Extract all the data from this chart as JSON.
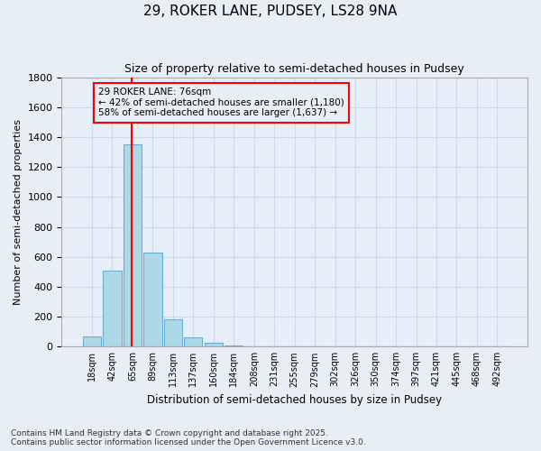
{
  "title": "29, ROKER LANE, PUDSEY, LS28 9NA",
  "subtitle": "Size of property relative to semi-detached houses in Pudsey",
  "xlabel": "Distribution of semi-detached houses by size in Pudsey",
  "ylabel": "Number of semi-detached properties",
  "footnote": "Contains HM Land Registry data © Crown copyright and database right 2025.\nContains public sector information licensed under the Open Government Licence v3.0.",
  "bin_labels": [
    "18sqm",
    "42sqm",
    "65sqm",
    "89sqm",
    "113sqm",
    "137sqm",
    "160sqm",
    "184sqm",
    "208sqm",
    "231sqm",
    "255sqm",
    "279sqm",
    "302sqm",
    "326sqm",
    "350sqm",
    "374sqm",
    "397sqm",
    "421sqm",
    "445sqm",
    "468sqm",
    "492sqm"
  ],
  "bar_values": [
    70,
    510,
    1350,
    630,
    185,
    60,
    25,
    10,
    0,
    0,
    0,
    0,
    0,
    0,
    0,
    0,
    0,
    0,
    0,
    0,
    0
  ],
  "bar_color": "#add8e6",
  "bar_edge_color": "#6baed6",
  "grid_color": "#d0d8e8",
  "background_color": "#e8eef8",
  "property_label": "29 ROKER LANE: 76sqm",
  "annotation_line1": "← 42% of semi-detached houses are smaller (1,180)",
  "annotation_line2": "58% of semi-detached houses are larger (1,637) →",
  "vline_color": "red",
  "annotation_box_color": "red",
  "ylim": [
    0,
    1800
  ],
  "yticks": [
    0,
    200,
    400,
    600,
    800,
    1000,
    1200,
    1400,
    1600,
    1800
  ]
}
